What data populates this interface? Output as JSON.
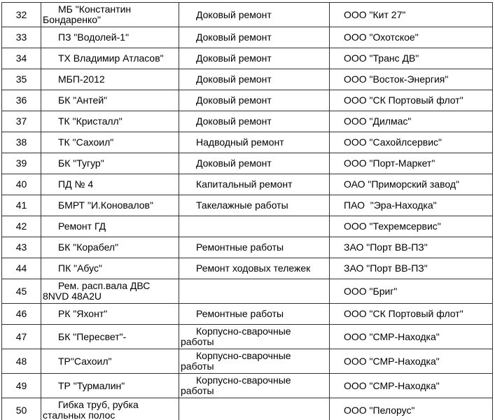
{
  "page": {
    "background_color": "#ffffff",
    "text_color": "#000000",
    "grid_color": "#333333",
    "visible_row_range": "32-50"
  },
  "table": {
    "rows": [
      {
        "num": "32",
        "object": "МБ \"Константин Бондаренко\"",
        "work_type": "Доковый ремонт",
        "contractor": "ООО \"Кит 27\""
      },
      {
        "num": "33",
        "object": "ПЗ \"Водолей-1\"",
        "work_type": "Доковый ремонт",
        "contractor": "ООО \"Охотское\""
      },
      {
        "num": "34",
        "object": "ТХ Владимир Атласов\"",
        "work_type": "Доковый ремонт",
        "contractor": "ООО \"Транс ДВ\""
      },
      {
        "num": "35",
        "object": "МБП-2012",
        "work_type": "Доковый ремонт",
        "contractor": "ООО \"Восток-Энергия\""
      },
      {
        "num": "36",
        "object": "БК \"Антей\"",
        "work_type": "Доковый ремонт",
        "contractor": "ООО \"СК Портовый флот\""
      },
      {
        "num": "37",
        "object": "ТК \"Кристалл\"",
        "work_type": "Доковый ремонт",
        "contractor": "ООО \"Дилмас\""
      },
      {
        "num": "38",
        "object": "ТК \"Сахоил\"",
        "work_type": "Надводный ремонт",
        "contractor": "ООО \"Сахойлсервис\""
      },
      {
        "num": "39",
        "object": "БК \"Тугур\"",
        "work_type": "Доковый ремонт",
        "contractor": "ООО \"Порт-Маркет\""
      },
      {
        "num": "40",
        "object": "ПД № 4",
        "work_type": "Капитальный ремонт",
        "contractor": "ОАО \"Приморский завод\""
      },
      {
        "num": "41",
        "object": "БМРТ \"И.Коновалов\"",
        "work_type": "Такелажные работы",
        "contractor": "ПАО  \"Эра-Находка\""
      },
      {
        "num": "42",
        "object": "Ремонт ГД",
        "work_type": "",
        "contractor": "ООО \"Техремсервис\""
      },
      {
        "num": "43",
        "object": "БК \"Корабел\"",
        "work_type": "Ремонтные работы",
        "contractor": "ЗАО \"Порт ВВ-ПЗ\""
      },
      {
        "num": "44",
        "object": "ПК \"Абус\"",
        "work_type": "Ремонт ходовых тележек",
        "contractor": "ЗАО \"Порт ВВ-ПЗ\""
      },
      {
        "num": "45",
        "object": "Рем. расп.вала ДВС 8NVD 48A2U",
        "work_type": "",
        "contractor": "ООО \"Бриг\""
      },
      {
        "num": "46",
        "object": "РК \"Яхонт\"",
        "work_type": "Ремонтные работы",
        "contractor": "ООО \"СК Портовый флот\""
      },
      {
        "num": "47",
        "object": "БК \"Пересвет\"-",
        "work_type": "Корпусно-сварочные работы",
        "contractor": "ООО \"СМР-Находка\""
      },
      {
        "num": "48",
        "object": "ТР\"Сахоил\"",
        "work_type": "Корпусно-сварочные работы",
        "contractor": "ООО \"СМР-Находка\""
      },
      {
        "num": "49",
        "object": "ТР \"Турмалин\"",
        "work_type": "Корпусно-сварочные работы",
        "contractor": "ООО \"СМР-Находка\""
      },
      {
        "num": "50",
        "object": "Гибка труб, рубка стальных полос",
        "work_type": "",
        "contractor": "ООО \"Пелорус\""
      }
    ]
  }
}
